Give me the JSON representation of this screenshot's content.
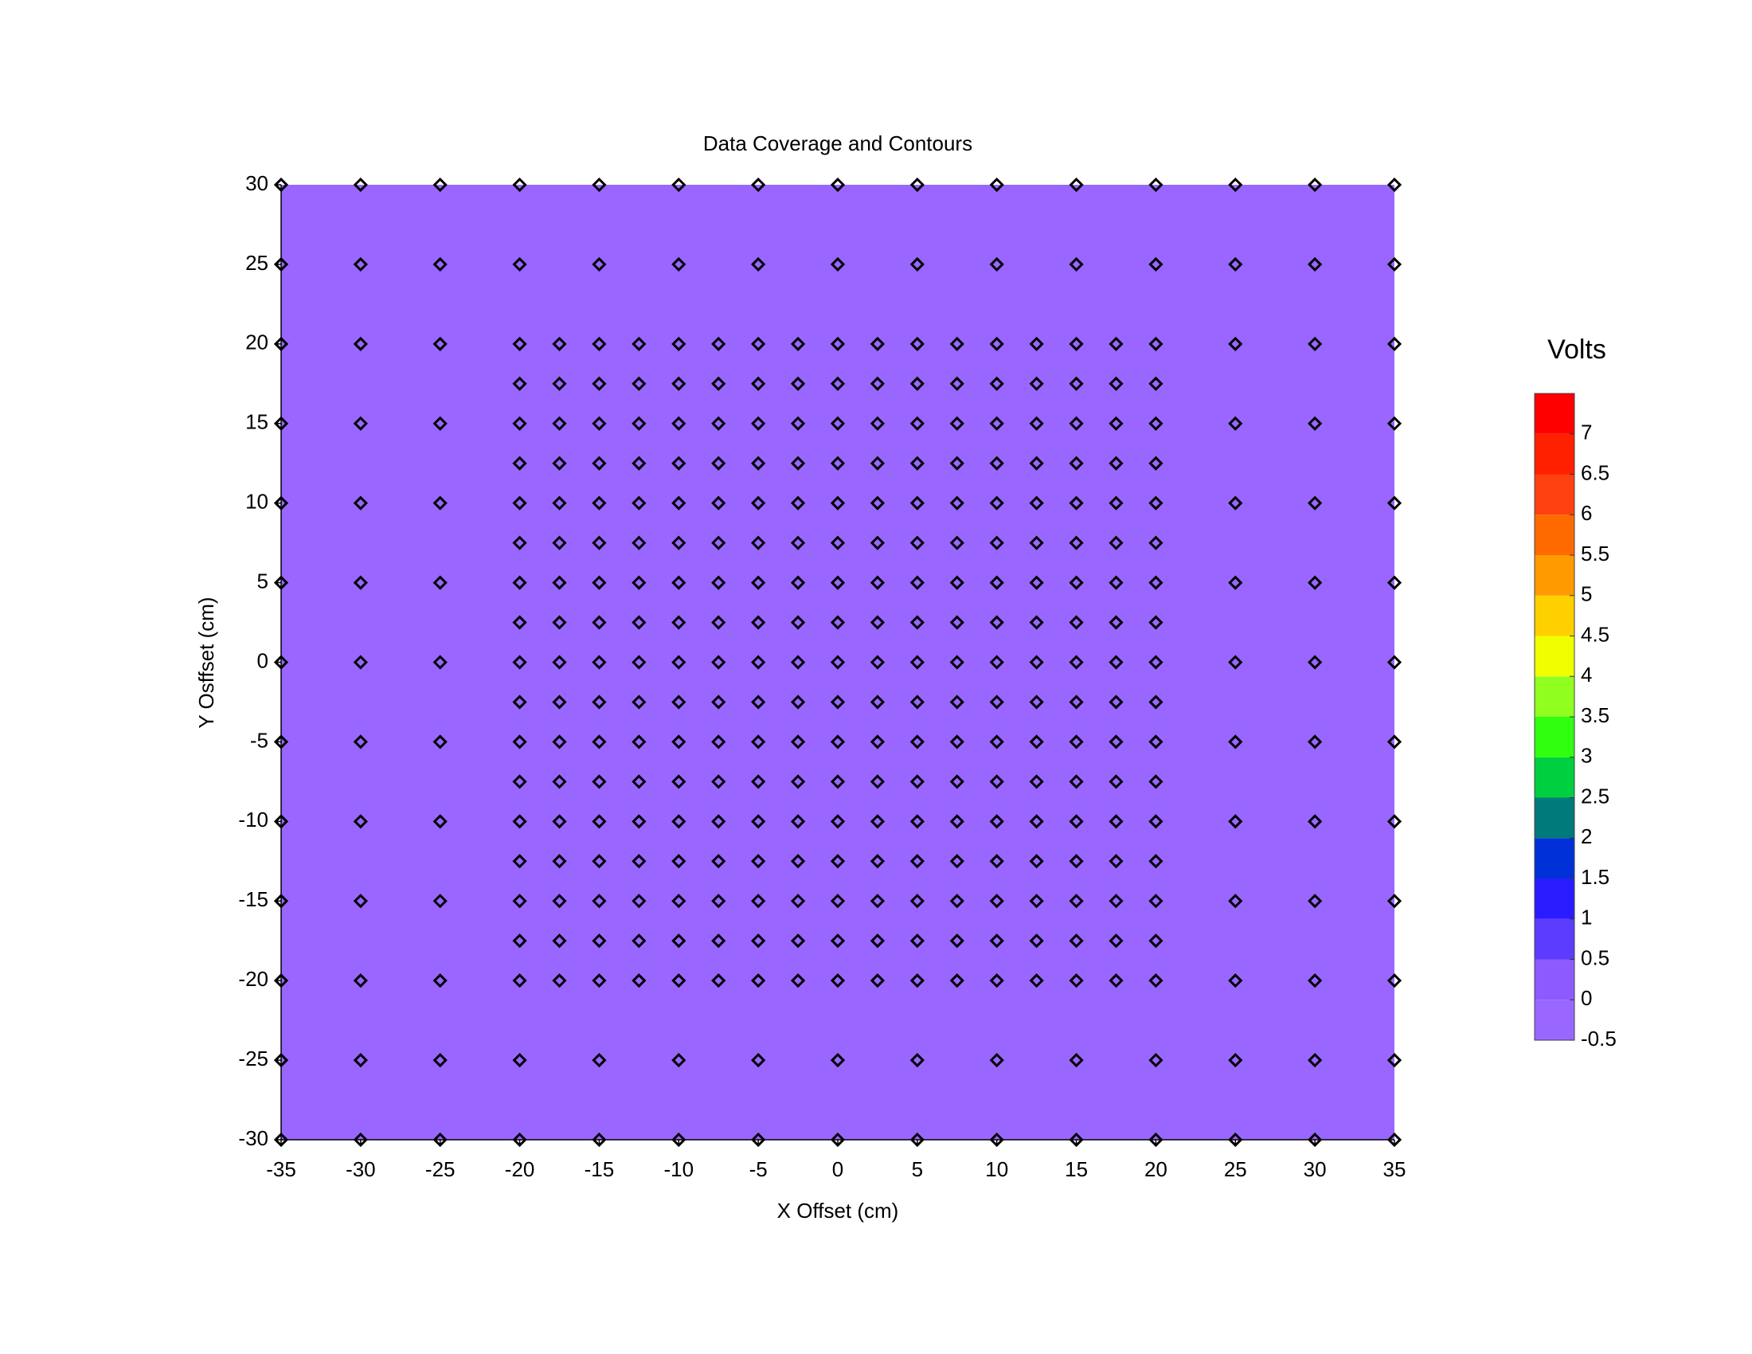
{
  "chart_data": {
    "type": "scatter",
    "title": "Data Coverage and Contours",
    "xlabel": "X Offset (cm)",
    "ylabel": "Y Osffset (cm)",
    "xlim": [
      -35,
      35
    ],
    "ylim": [
      -30,
      30
    ],
    "xticks": [
      -35,
      -30,
      -25,
      -20,
      -15,
      -10,
      -5,
      0,
      5,
      10,
      15,
      20,
      25,
      30,
      35
    ],
    "yticks": [
      -30,
      -25,
      -20,
      -15,
      -10,
      -5,
      0,
      5,
      10,
      15,
      20,
      25,
      30
    ],
    "contour_color": "#9966ff",
    "marker_color": "#000000",
    "rows": [
      {
        "y": 30,
        "x": [
          -35,
          -30,
          -25,
          -20,
          -15,
          -10,
          -5,
          0,
          5,
          10,
          15,
          20,
          25,
          30,
          35
        ]
      },
      {
        "y": 25,
        "x": [
          -35,
          -30,
          -25,
          -20,
          -15,
          -10,
          -5,
          0,
          5,
          10,
          15,
          20,
          25,
          30,
          35
        ]
      },
      {
        "y": 20,
        "x": [
          -35,
          -30,
          -25,
          -20,
          -17.5,
          -15,
          -12.5,
          -10,
          -7.5,
          -5,
          -2.5,
          0,
          2.5,
          5,
          7.5,
          10,
          12.5,
          15,
          17.5,
          20,
          25,
          30,
          35
        ]
      },
      {
        "y": 17.5,
        "x": [
          -20,
          -17.5,
          -15,
          -12.5,
          -10,
          -7.5,
          -5,
          -2.5,
          0,
          2.5,
          5,
          7.5,
          10,
          12.5,
          15,
          17.5,
          20
        ]
      },
      {
        "y": 15,
        "x": [
          -35,
          -30,
          -25,
          -20,
          -17.5,
          -15,
          -12.5,
          -10,
          -7.5,
          -5,
          -2.5,
          0,
          2.5,
          5,
          7.5,
          10,
          12.5,
          15,
          17.5,
          20,
          25,
          30,
          35
        ]
      },
      {
        "y": 12.5,
        "x": [
          -20,
          -17.5,
          -15,
          -12.5,
          -10,
          -7.5,
          -5,
          -2.5,
          0,
          2.5,
          5,
          7.5,
          10,
          12.5,
          15,
          17.5,
          20
        ]
      },
      {
        "y": 10,
        "x": [
          -35,
          -30,
          -25,
          -20,
          -17.5,
          -15,
          -12.5,
          -10,
          -7.5,
          -5,
          -2.5,
          0,
          2.5,
          5,
          7.5,
          10,
          12.5,
          15,
          17.5,
          20,
          25,
          30,
          35
        ]
      },
      {
        "y": 7.5,
        "x": [
          -20,
          -17.5,
          -15,
          -12.5,
          -10,
          -7.5,
          -5,
          -2.5,
          0,
          2.5,
          5,
          7.5,
          10,
          12.5,
          15,
          17.5,
          20
        ]
      },
      {
        "y": 5,
        "x": [
          -35,
          -30,
          -25,
          -20,
          -17.5,
          -15,
          -12.5,
          -10,
          -7.5,
          -5,
          -2.5,
          0,
          2.5,
          5,
          7.5,
          10,
          12.5,
          15,
          17.5,
          20,
          25,
          30,
          35
        ]
      },
      {
        "y": 2.5,
        "x": [
          -20,
          -17.5,
          -15,
          -12.5,
          -10,
          -7.5,
          -5,
          -2.5,
          0,
          2.5,
          5,
          7.5,
          10,
          12.5,
          15,
          17.5,
          20
        ]
      },
      {
        "y": 0,
        "x": [
          -35,
          -30,
          -25,
          -20,
          -17.5,
          -15,
          -12.5,
          -10,
          -7.5,
          -5,
          -2.5,
          0,
          2.5,
          5,
          7.5,
          10,
          12.5,
          15,
          17.5,
          20,
          25,
          30,
          35
        ]
      },
      {
        "y": -2.5,
        "x": [
          -20,
          -17.5,
          -15,
          -12.5,
          -10,
          -7.5,
          -5,
          -2.5,
          0,
          2.5,
          5,
          7.5,
          10,
          12.5,
          15,
          17.5,
          20
        ]
      },
      {
        "y": -5,
        "x": [
          -35,
          -30,
          -25,
          -20,
          -17.5,
          -15,
          -12.5,
          -10,
          -7.5,
          -5,
          -2.5,
          0,
          2.5,
          5,
          7.5,
          10,
          12.5,
          15,
          17.5,
          20,
          25,
          30,
          35
        ]
      },
      {
        "y": -7.5,
        "x": [
          -20,
          -17.5,
          -15,
          -12.5,
          -10,
          -7.5,
          -5,
          -2.5,
          0,
          2.5,
          5,
          7.5,
          10,
          12.5,
          15,
          17.5,
          20
        ]
      },
      {
        "y": -10,
        "x": [
          -35,
          -30,
          -25,
          -20,
          -17.5,
          -15,
          -12.5,
          -10,
          -7.5,
          -5,
          -2.5,
          0,
          2.5,
          5,
          7.5,
          10,
          12.5,
          15,
          17.5,
          20,
          25,
          30,
          35
        ]
      },
      {
        "y": -12.5,
        "x": [
          -20,
          -17.5,
          -15,
          -12.5,
          -10,
          -7.5,
          -5,
          -2.5,
          0,
          2.5,
          5,
          7.5,
          10,
          12.5,
          15,
          17.5,
          20
        ]
      },
      {
        "y": -15,
        "x": [
          -35,
          -30,
          -25,
          -20,
          -17.5,
          -15,
          -12.5,
          -10,
          -7.5,
          -5,
          -2.5,
          0,
          2.5,
          5,
          7.5,
          10,
          12.5,
          15,
          17.5,
          20,
          25,
          30,
          35
        ]
      },
      {
        "y": -17.5,
        "x": [
          -20,
          -17.5,
          -15,
          -12.5,
          -10,
          -7.5,
          -5,
          -2.5,
          0,
          2.5,
          5,
          7.5,
          10,
          12.5,
          15,
          17.5,
          20
        ]
      },
      {
        "y": -20,
        "x": [
          -35,
          -30,
          -25,
          -20,
          -17.5,
          -15,
          -12.5,
          -10,
          -7.5,
          -5,
          -2.5,
          0,
          2.5,
          5,
          7.5,
          10,
          12.5,
          15,
          17.5,
          20,
          25,
          30,
          35
        ]
      },
      {
        "y": -25,
        "x": [
          -35,
          -30,
          -25,
          -20,
          -15,
          -10,
          -5,
          0,
          5,
          10,
          15,
          20,
          25,
          30,
          35
        ]
      },
      {
        "y": -30,
        "x": [
          -35,
          -30,
          -25,
          -20,
          -15,
          -10,
          -5,
          0,
          5,
          10,
          15,
          20,
          25,
          30,
          35
        ]
      }
    ],
    "colorbar": {
      "title": "Volts",
      "levels": [
        -0.5,
        0,
        0.5,
        1,
        1.5,
        2,
        2.5,
        3,
        3.5,
        4,
        4.5,
        5,
        5.5,
        6,
        6.5,
        7,
        7.5
      ],
      "ticks": [
        -0.5,
        0,
        0.5,
        1,
        1.5,
        2,
        2.5,
        3,
        3.5,
        4,
        4.5,
        5,
        5.5,
        6,
        6.5,
        7
      ],
      "colors": [
        "#9966ff",
        "#8c5aff",
        "#5c3cff",
        "#2a1cff",
        "#0030d8",
        "#007a7a",
        "#00d040",
        "#30ff10",
        "#90ff20",
        "#f0ff00",
        "#ffd000",
        "#ff9a00",
        "#ff6a00",
        "#ff4010",
        "#ff2000",
        "#ff0000"
      ]
    }
  }
}
